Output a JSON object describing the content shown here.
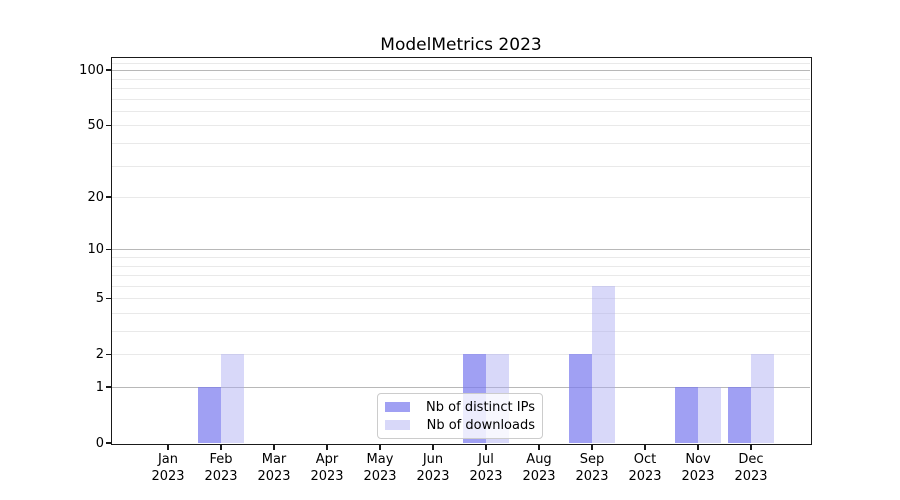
{
  "title": "ModelMetrics 2023",
  "chart_data": {
    "type": "bar",
    "title": "ModelMetrics 2023",
    "categories": [
      "Jan 2023",
      "Feb 2023",
      "Mar 2023",
      "Apr 2023",
      "May 2023",
      "Jun 2023",
      "Jul 2023",
      "Aug 2023",
      "Sep 2023",
      "Oct 2023",
      "Nov 2023",
      "Dec 2023"
    ],
    "series": [
      {
        "name": "Nb of distinct IPs",
        "values": [
          0,
          1,
          0,
          0,
          0,
          0,
          2,
          0,
          2,
          0,
          1,
          1
        ]
      },
      {
        "name": "Nb of downloads",
        "values": [
          0,
          2,
          0,
          0,
          0,
          0,
          2,
          0,
          6,
          0,
          1,
          2
        ]
      }
    ],
    "xlabel": "",
    "ylabel": "",
    "yticks": [
      0,
      1,
      2,
      5,
      10,
      20,
      50,
      100
    ],
    "ylim": [
      0,
      116
    ],
    "scale": "log1p",
    "grid": "horizontal",
    "legend_position": "lower center"
  },
  "legend": {
    "labels": [
      "Nb of distinct IPs",
      "Nb of downloads"
    ]
  },
  "colors": {
    "series_ip": "rgba(123,123,238,0.72)",
    "series_dl": "rgba(168,168,242,0.45)",
    "series_ip_hex": "#a9a9f4",
    "series_dl_hex": "#dadaf7",
    "major_grid": "#b8b8b8",
    "minor_grid": "#e9e9e9",
    "spine": "#1a1a1a",
    "legend_border": "#cccccc",
    "text": "#000000"
  }
}
